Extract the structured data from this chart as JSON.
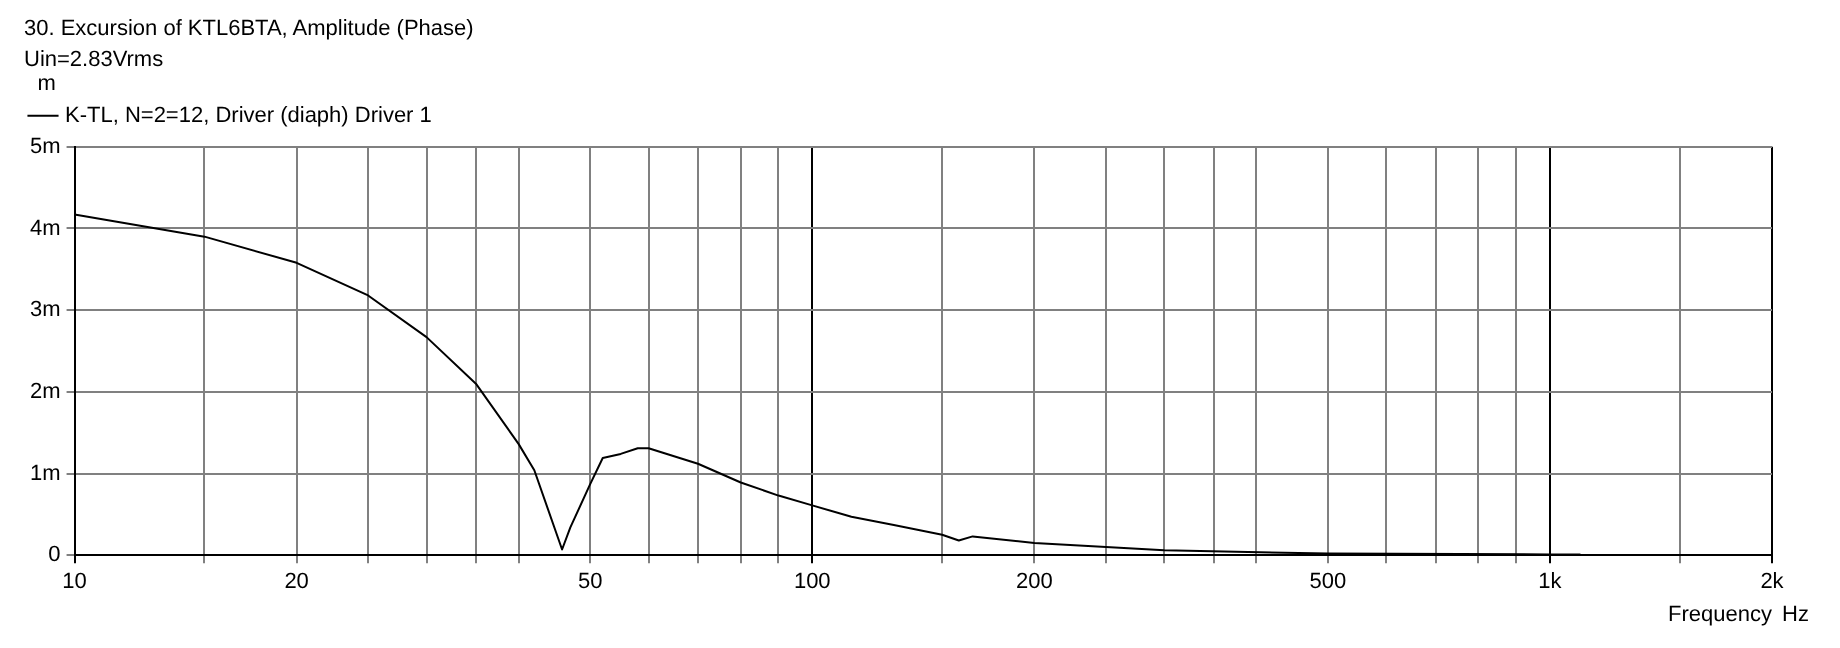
{
  "chart_data": {
    "type": "line",
    "title": "30. Excursion of KTL6BTA, Amplitude (Phase)",
    "subtitle": "Uin=2.83Vrms",
    "xlabel": "Frequency",
    "ylabel": "m",
    "annotations": [
      "Hz"
    ],
    "log": "x",
    "grid": true,
    "legend": "top left",
    "line_style": "solid",
    "marker": "none",
    "xlim": [
      10,
      2000
    ],
    "ylim": [
      0,
      5
    ],
    "xticks": [
      10,
      {
        "value": 15,
        "label": null
      },
      {
        "value": 20,
        "label": "20"
      },
      {
        "value": 25,
        "label": null
      },
      {
        "value": 30,
        "label": null
      },
      {
        "value": 35,
        "label": null
      },
      {
        "value": 40,
        "label": null
      },
      {
        "value": 50,
        "label": "50"
      },
      {
        "value": 60,
        "label": null
      },
      {
        "value": 70,
        "label": null
      },
      {
        "value": 80,
        "label": null
      },
      {
        "value": 90,
        "label": null
      },
      100,
      {
        "value": 150,
        "label": null
      },
      200,
      {
        "value": 250,
        "label": null
      },
      {
        "value": 300,
        "label": null
      },
      {
        "value": 350,
        "label": null
      },
      {
        "value": 400,
        "label": null
      },
      500,
      {
        "value": 600,
        "label": null
      },
      {
        "value": 700,
        "label": null
      },
      {
        "value": 800,
        "label": null
      },
      {
        "value": 900,
        "label": null
      },
      {
        "value": 1000,
        "label": "1k"
      },
      {
        "value": 1500,
        "label": null
      },
      {
        "value": 2000,
        "label": "2k"
      }
    ],
    "yticks": [
      0,
      {
        "value": 1,
        "label": "1m"
      },
      {
        "value": 2,
        "label": "2m"
      },
      {
        "value": 3,
        "label": "3m"
      },
      {
        "value": 4,
        "label": "4m"
      },
      {
        "value": 5,
        "label": "5m"
      }
    ],
    "series": [
      {
        "name": "K-TL, N=2=12, Driver (diaph) Driver 1",
        "color": "#000000",
        "x": [
          10,
          15,
          20,
          25,
          30,
          35,
          40,
          42,
          45.8,
          47,
          50,
          52,
          55,
          58,
          60,
          70,
          80,
          90,
          100,
          113,
          129,
          150,
          158,
          165,
          200,
          300,
          500,
          1000,
          1100
        ],
        "values": [
          4.17,
          3.9,
          3.58,
          3.18,
          2.67,
          2.1,
          1.36,
          1.04,
          0.07,
          0.34,
          0.87,
          1.19,
          1.24,
          1.31,
          1.31,
          1.12,
          0.89,
          0.73,
          0.61,
          0.47,
          0.37,
          0.25,
          0.18,
          0.23,
          0.15,
          0.06,
          0.02,
          0.01,
          0.01
        ]
      }
    ]
  }
}
